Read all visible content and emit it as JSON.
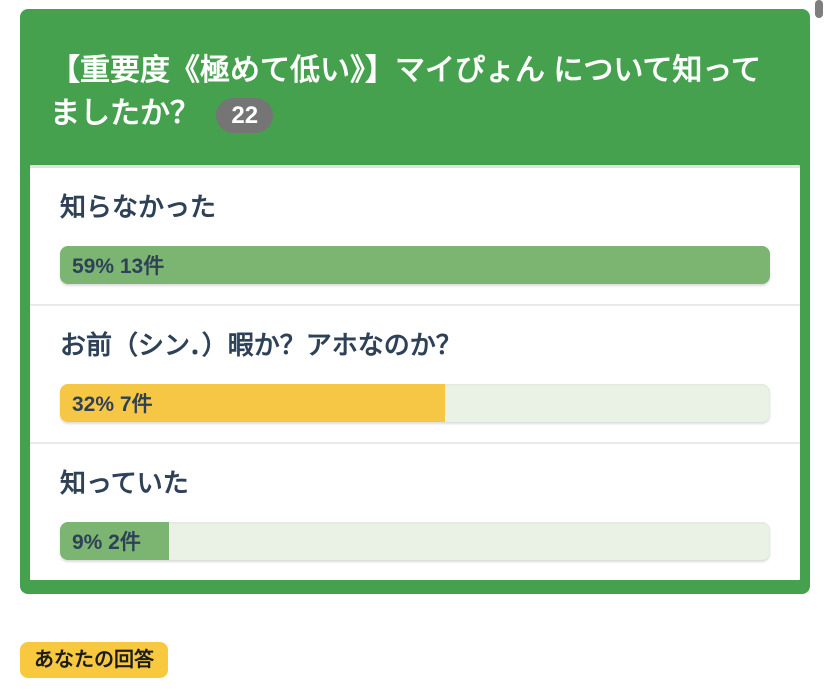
{
  "poll": {
    "question": "【重要度《極めて低い》】マイぴょん について知ってましたか？",
    "response_count": "22",
    "options": [
      {
        "label": "知らなかった",
        "result_text": "59% 13件",
        "percent": 59,
        "bar_color": "#7cb471"
      },
      {
        "label": "お前（シン．）暇か？アホなのか？",
        "result_text": "32% 7件",
        "percent": 32,
        "bar_color": "#f6c744"
      },
      {
        "label": "知っていた",
        "result_text": "9% 2件",
        "percent": 9,
        "bar_color": "#7cb471"
      }
    ]
  },
  "footer": {
    "your_answer_label": "あなたの回答"
  },
  "theme": {
    "card_green": "#46a14e",
    "bar_green": "#7cb471",
    "bar_yellow": "#f6c744",
    "bar_track": "#e9f2e4",
    "text_dark": "#2e4157",
    "count_badge_gray": "#757575",
    "answer_badge_yellow": "#f8c93f",
    "separator": "#e9e9e9"
  }
}
